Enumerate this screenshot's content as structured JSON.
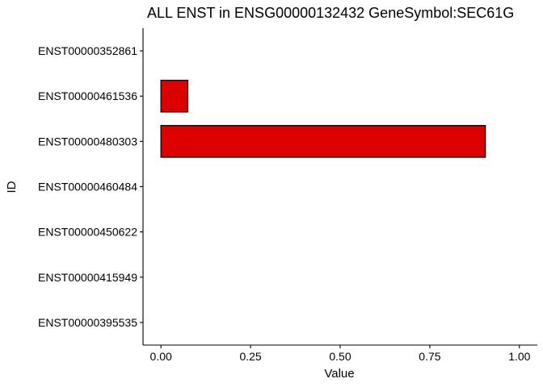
{
  "chart_data": {
    "type": "bar",
    "orientation": "horizontal",
    "title": "ALL ENST in ENSG00000132432 GeneSymbol:SEC61G",
    "xlabel": "Value",
    "ylabel": "ID",
    "categories": [
      "ENST00000352861",
      "ENST00000461536",
      "ENST00000480303",
      "ENST00000460484",
      "ENST00000450622",
      "ENST00000415949",
      "ENST00000395535"
    ],
    "values": [
      0,
      0.075,
      0.905,
      0,
      0,
      0,
      0
    ],
    "xlim": [
      -0.05,
      1.05
    ],
    "xticks": [
      0,
      0.25,
      0.5,
      0.75,
      1
    ],
    "xtick_labels": [
      "0.00",
      "0.25",
      "0.50",
      "0.75",
      "1.00"
    ],
    "bar_color": "#dd0000",
    "grid": false
  }
}
